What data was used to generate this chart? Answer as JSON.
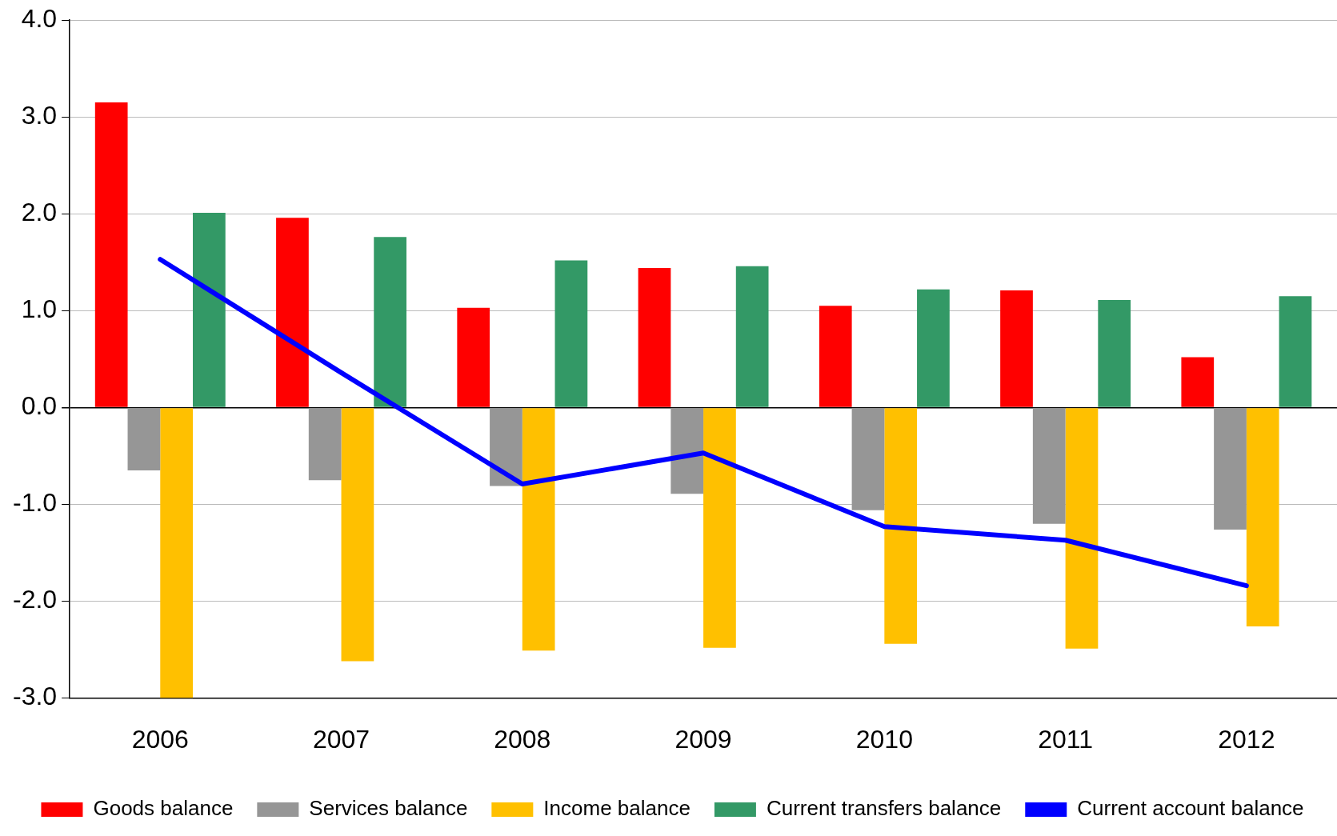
{
  "chart_data": {
    "type": "bar",
    "categories": [
      "2006",
      "2007",
      "2008",
      "2009",
      "2010",
      "2011",
      "2012"
    ],
    "series": [
      {
        "name": "Goods balance",
        "color": "#ff0000",
        "values": [
          3.15,
          1.96,
          1.03,
          1.44,
          1.05,
          1.21,
          0.52
        ]
      },
      {
        "name": "Services balance",
        "color": "#969696",
        "values": [
          -0.65,
          -0.75,
          -0.81,
          -0.89,
          -1.06,
          -1.2,
          -1.26
        ]
      },
      {
        "name": "Income balance",
        "color": "#ffc000",
        "values": [
          -3.0,
          -2.62,
          -2.51,
          -2.48,
          -2.44,
          -2.49,
          -2.26
        ]
      },
      {
        "name": "Current transfers balance",
        "color": "#339966",
        "values": [
          2.01,
          1.76,
          1.52,
          1.46,
          1.22,
          1.11,
          1.15
        ]
      },
      {
        "name": "Current account balance",
        "color": "#0000ff",
        "type": "line",
        "values": [
          1.53,
          0.36,
          -0.79,
          -0.47,
          -1.23,
          -1.37,
          -1.84
        ]
      }
    ],
    "ylim": [
      -3.0,
      4.0
    ],
    "yticks": [
      {
        "value": -3,
        "label": "-3.0"
      },
      {
        "value": -2,
        "label": "-2.0"
      },
      {
        "value": -1,
        "label": "-1.0"
      },
      {
        "value": 0,
        "label": "0.0"
      },
      {
        "value": 1,
        "label": "1.0"
      },
      {
        "value": 2,
        "label": "2.0"
      },
      {
        "value": 3,
        "label": "3.0"
      },
      {
        "value": 4,
        "label": "4.0"
      }
    ],
    "grid": "y",
    "legend": "bottom",
    "marker": "none",
    "line_style": "solid"
  }
}
